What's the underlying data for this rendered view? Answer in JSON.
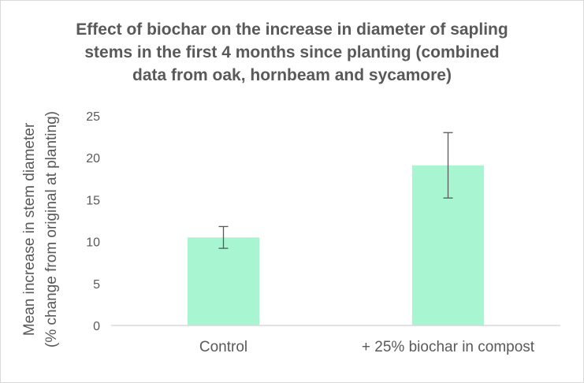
{
  "chart_data": {
    "type": "bar",
    "title_lines": [
      "Effect of biochar on the increase in diameter of sapling",
      "stems in the first 4 months since planting (combined",
      "data from oak, hornbeam and sycamore)"
    ],
    "ylabel_lines": [
      "Mean increase in stem diameter",
      "(% change from original at planting)"
    ],
    "xlabel": "",
    "categories": [
      "Control",
      "+ 25% biochar in compost"
    ],
    "values": [
      10.5,
      19.1
    ],
    "error_bars": [
      {
        "low": 9.2,
        "high": 11.8
      },
      {
        "low": 15.2,
        "high": 23.0
      }
    ],
    "ylim": [
      0,
      25
    ],
    "yticks": [
      "0",
      "5",
      "10",
      "15",
      "20",
      "25"
    ],
    "grid": false,
    "legend": "none",
    "colors": {
      "bar": "#a8f5d2",
      "error_bar": "#595959",
      "axis": "#d9d9d9",
      "text": "#595959"
    }
  }
}
